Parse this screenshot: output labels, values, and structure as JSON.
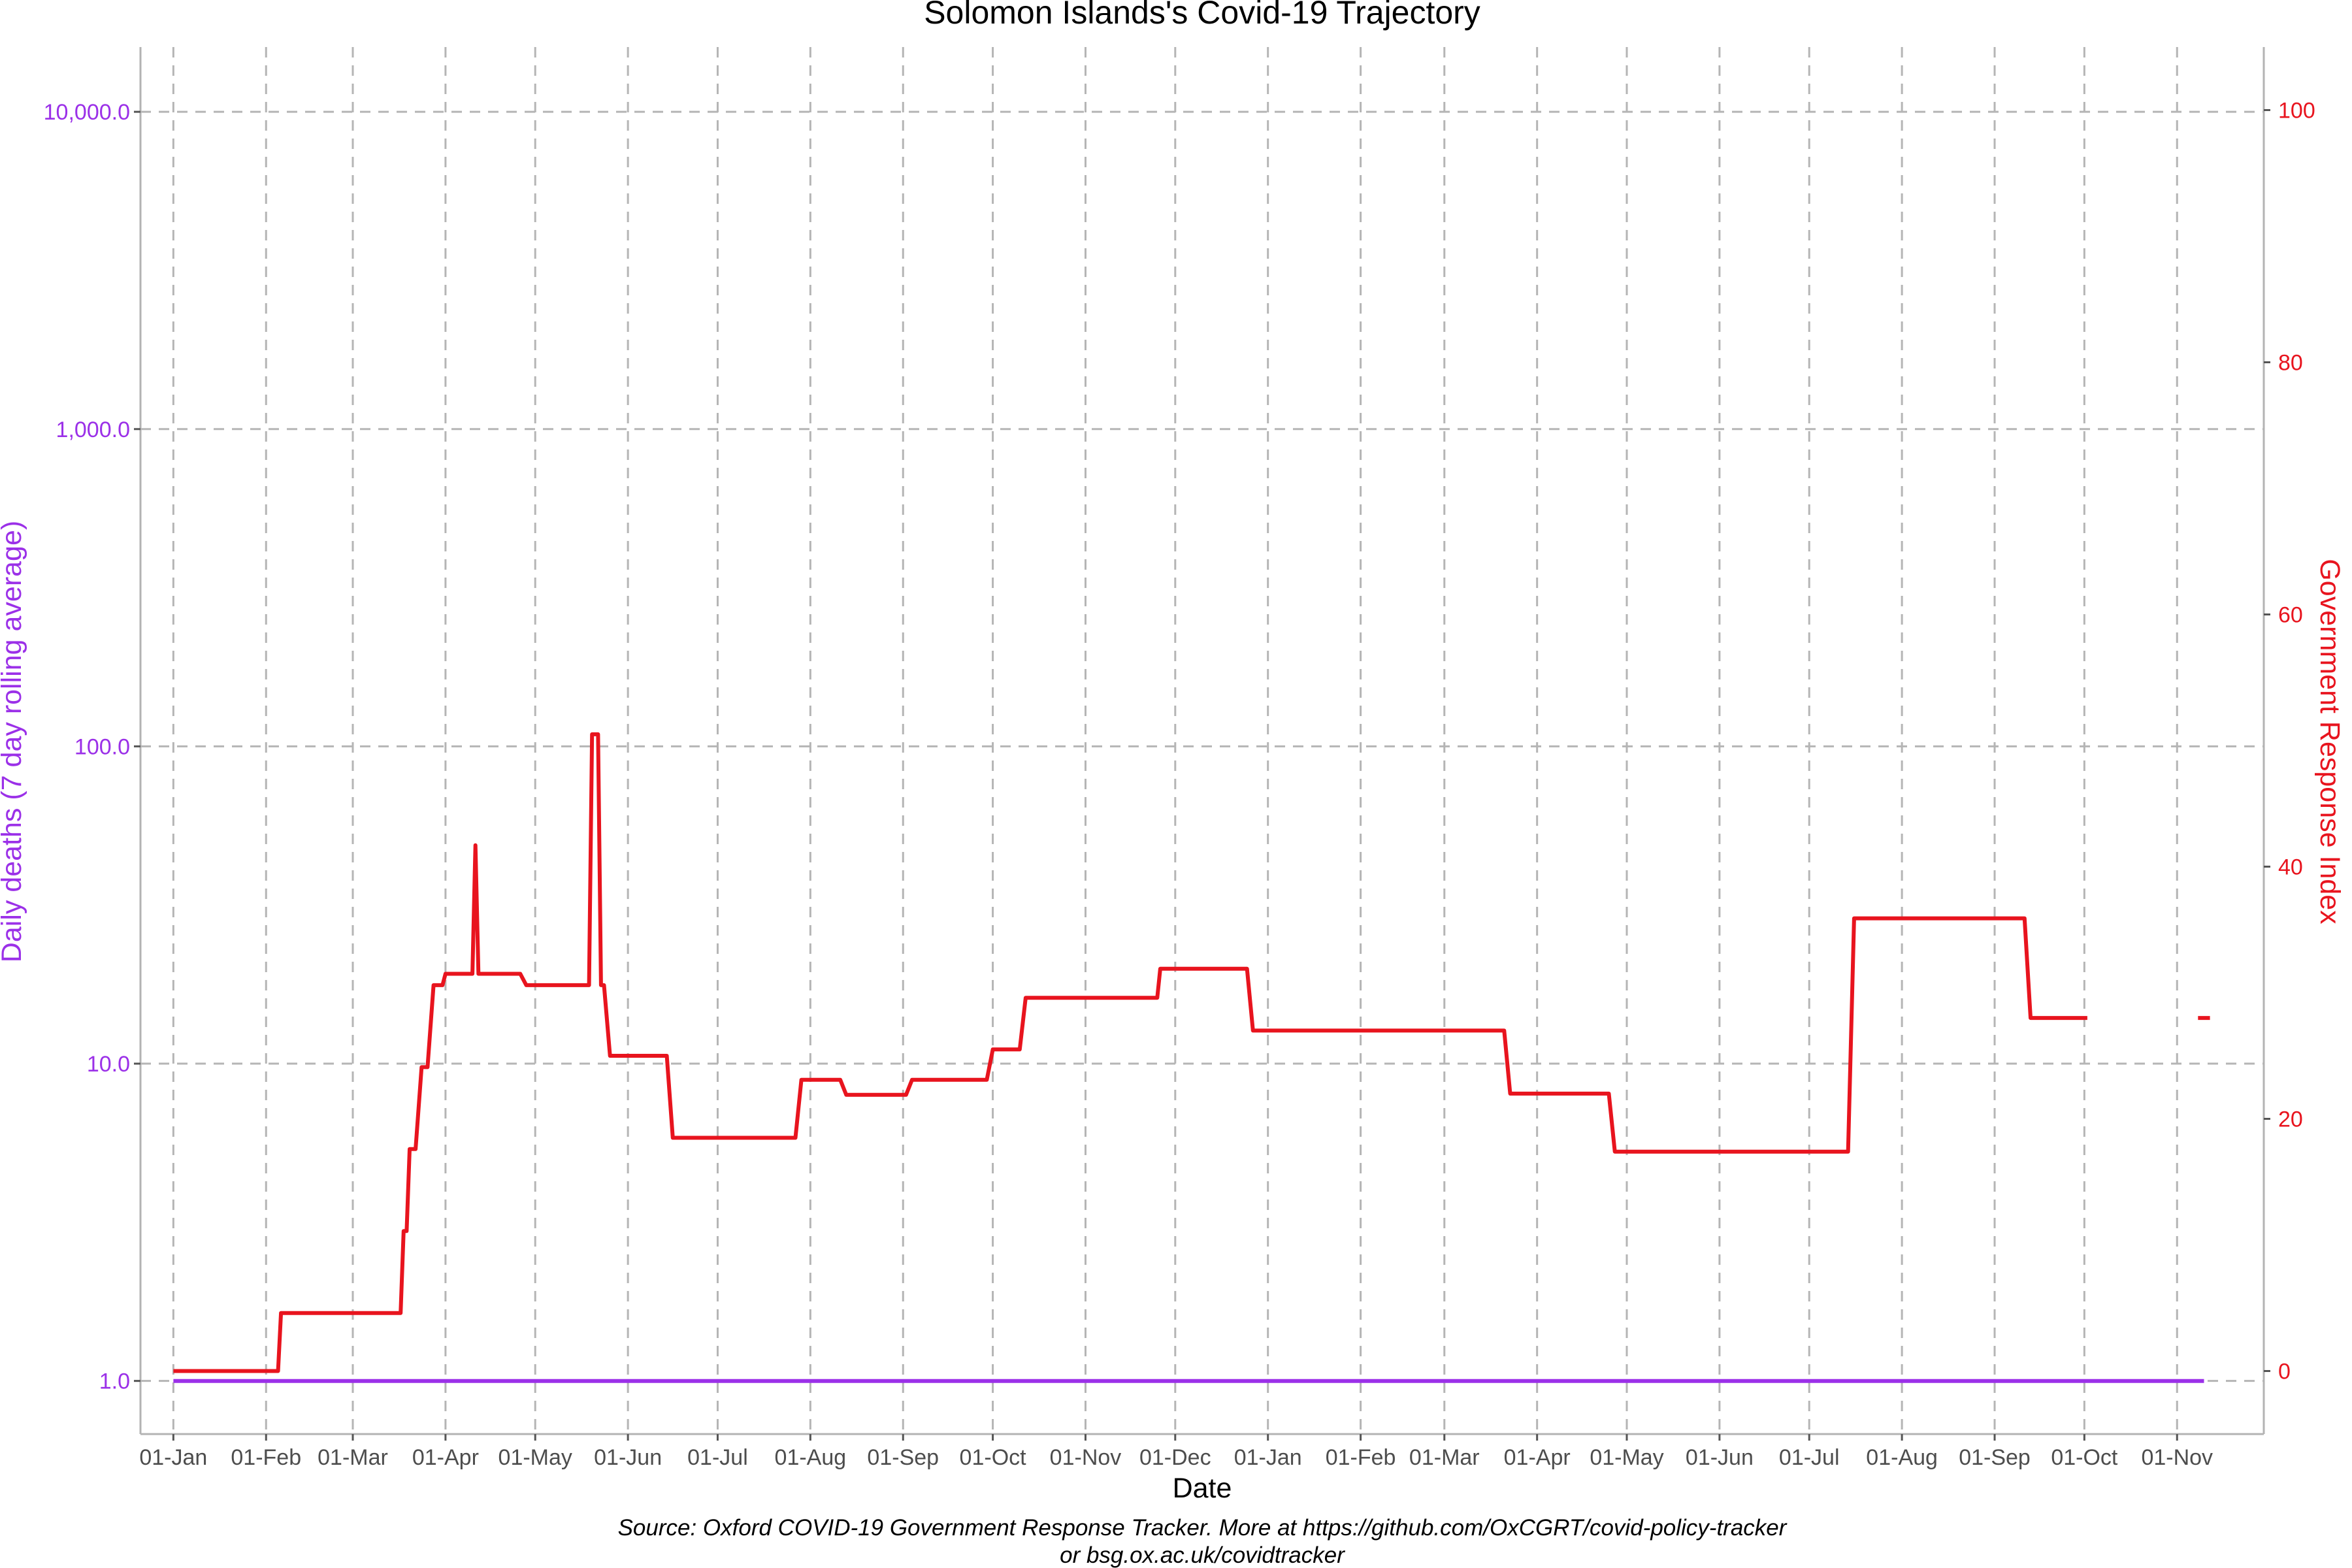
{
  "chart_data": {
    "type": "line",
    "title": "Solomon Islands's Covid-19 Trajectory",
    "xlabel": "Date",
    "ylabel_left": "Daily deaths (7 day rolling average)",
    "ylabel_right": "Government Response Index",
    "caption_line1": "Source: Oxford COVID-19 Government Response Tracker. More at https://github.com/OxCGRT/covid-policy-tracker",
    "caption_line2": "or bsg.ox.ac.uk/covidtracker",
    "left_axis": {
      "scale": "log10",
      "range": [
        0.68,
        16000
      ],
      "ticks": [
        1,
        10,
        100,
        1000,
        10000
      ],
      "tick_labels": [
        "1.0",
        "10.0",
        "100.0",
        "1,000.0",
        "10,000.0"
      ],
      "color": "#9B30E8"
    },
    "right_axis": {
      "scale": "linear",
      "range": [
        -5,
        105
      ],
      "ticks": [
        0,
        20,
        40,
        60,
        80,
        100
      ],
      "tick_labels": [
        "0",
        "20",
        "40",
        "60",
        "80",
        "100"
      ],
      "color": "#E8141E"
    },
    "x_axis": {
      "range": [
        "2019-12-21",
        "2021-11-30"
      ],
      "ticks": [
        "2020-01-01",
        "2020-02-01",
        "2020-03-01",
        "2020-04-01",
        "2020-05-01",
        "2020-06-01",
        "2020-07-01",
        "2020-08-01",
        "2020-09-01",
        "2020-10-01",
        "2020-11-01",
        "2020-12-01",
        "2021-01-01",
        "2021-02-01",
        "2021-03-01",
        "2021-04-01",
        "2021-05-01",
        "2021-06-01",
        "2021-07-01",
        "2021-08-01",
        "2021-09-01",
        "2021-10-01",
        "2021-11-01"
      ],
      "tick_labels": [
        "01-Jan",
        "01-Feb",
        "01-Mar",
        "01-Apr",
        "01-May",
        "01-Jun",
        "01-Jul",
        "01-Aug",
        "01-Sep",
        "01-Oct",
        "01-Nov",
        "01-Dec",
        "01-Jan",
        "01-Feb",
        "01-Mar",
        "01-Apr",
        "01-May",
        "01-Jun",
        "01-Jul",
        "01-Aug",
        "01-Sep",
        "01-Oct",
        "01-Nov"
      ]
    },
    "grid": true,
    "grid_style": "dashed",
    "series": [
      {
        "axis": "left",
        "color": "#9B30E8",
        "points": [
          [
            "2020-01-01",
            1.0
          ],
          [
            "2021-11-10",
            1.0
          ]
        ]
      },
      {
        "axis": "right",
        "color": "#E8141E",
        "segments": [
          [
            [
              "2020-01-01",
              0
            ],
            [
              "2020-02-05",
              0
            ],
            [
              "2020-02-06",
              4.6
            ],
            [
              "2020-03-17",
              4.6
            ],
            [
              "2020-03-18",
              11.1
            ],
            [
              "2020-03-19",
              11.1
            ],
            [
              "2020-03-20",
              17.6
            ],
            [
              "2020-03-22",
              17.6
            ],
            [
              "2020-03-24",
              24.1
            ],
            [
              "2020-03-26",
              24.1
            ],
            [
              "2020-03-28",
              30.6
            ],
            [
              "2020-03-31",
              30.6
            ],
            [
              "2020-04-01",
              31.5
            ],
            [
              "2020-04-10",
              31.5
            ],
            [
              "2020-04-11",
              41.7
            ],
            [
              "2020-04-12",
              31.5
            ],
            [
              "2020-04-26",
              31.5
            ],
            [
              "2020-04-28",
              30.6
            ],
            [
              "2020-05-19",
              30.6
            ],
            [
              "2020-05-20",
              50.5
            ],
            [
              "2020-05-22",
              50.5
            ],
            [
              "2020-05-23",
              30.6
            ],
            [
              "2020-05-24",
              30.6
            ],
            [
              "2020-05-26",
              25.0
            ],
            [
              "2020-06-14",
              25.0
            ],
            [
              "2020-06-16",
              18.5
            ],
            [
              "2020-07-27",
              18.5
            ],
            [
              "2020-07-29",
              23.1
            ],
            [
              "2020-08-11",
              23.1
            ],
            [
              "2020-08-13",
              21.9
            ],
            [
              "2020-09-02",
              21.9
            ],
            [
              "2020-09-04",
              23.1
            ],
            [
              "2020-09-29",
              23.1
            ],
            [
              "2020-10-01",
              25.5
            ],
            [
              "2020-10-10",
              25.5
            ],
            [
              "2020-10-12",
              29.6
            ],
            [
              "2020-11-25",
              29.6
            ],
            [
              "2020-11-26",
              31.9
            ],
            [
              "2020-12-25",
              31.9
            ],
            [
              "2020-12-27",
              27.0
            ],
            [
              "2021-03-21",
              27.0
            ],
            [
              "2021-03-23",
              22.0
            ],
            [
              "2021-04-25",
              22.0
            ],
            [
              "2021-04-27",
              17.4
            ],
            [
              "2021-07-14",
              17.4
            ],
            [
              "2021-07-16",
              35.9
            ],
            [
              "2021-09-11",
              35.9
            ],
            [
              "2021-09-13",
              28.0
            ],
            [
              "2021-10-02",
              28.0
            ]
          ],
          [
            [
              "2021-11-08",
              28.0
            ],
            [
              "2021-11-12",
              28.0
            ]
          ]
        ]
      }
    ]
  }
}
